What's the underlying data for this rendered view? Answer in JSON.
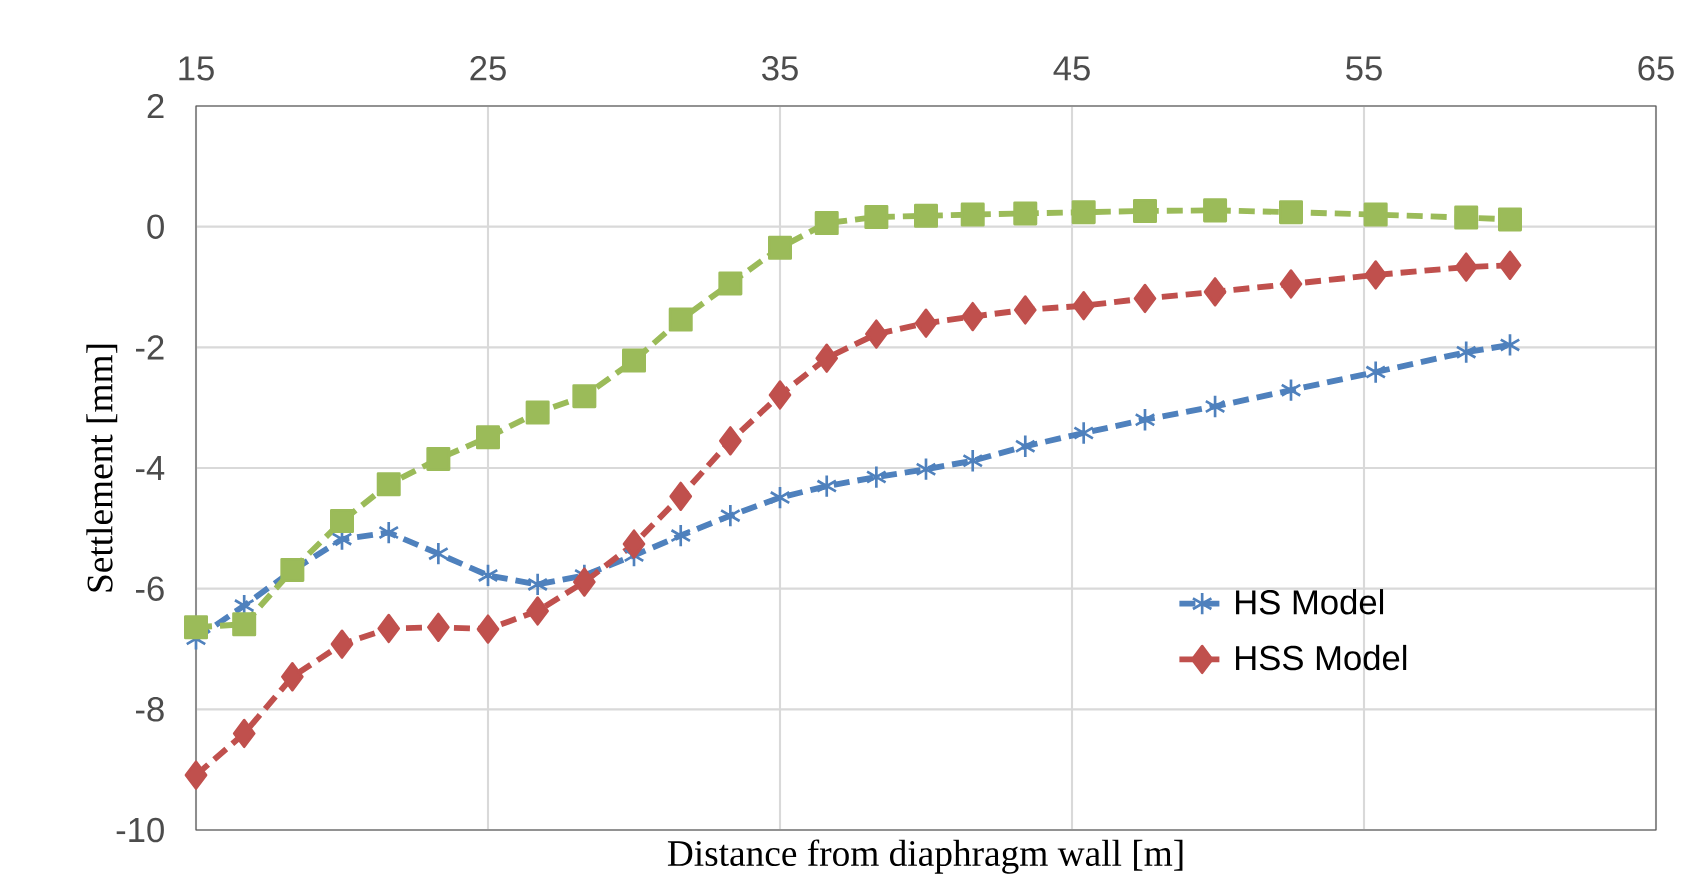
{
  "chart_data": {
    "type": "line",
    "xlabel": "Distance from diaphragm wall [m]",
    "ylabel": "Settlement [mm]",
    "x": [
      15,
      16.65,
      18.3,
      20,
      21.6,
      23.3,
      25,
      26.7,
      28.3,
      30,
      31.6,
      33.3,
      35,
      36.6,
      38.3,
      40,
      41.6,
      43.4,
      45.4,
      47.5,
      49.9,
      52.5,
      55.4,
      58.5,
      60
    ],
    "series": [
      {
        "name": "HS Model",
        "color": "#4f81bd",
        "marker": "cross",
        "values": [
          -6.83,
          -6.28,
          -5.7,
          -5.18,
          -5.07,
          -5.42,
          -5.78,
          -5.93,
          -5.78,
          -5.45,
          -5.12,
          -4.79,
          -4.49,
          -4.3,
          -4.15,
          -4.02,
          -3.88,
          -3.64,
          -3.42,
          -3.2,
          -2.98,
          -2.71,
          -2.41,
          -2.08,
          -1.96
        ]
      },
      {
        "name": "HSS Model",
        "color": "#c0504d",
        "marker": "diamond",
        "values": [
          -9.09,
          -8.4,
          -7.46,
          -6.92,
          -6.66,
          -6.64,
          -6.67,
          -6.37,
          -5.89,
          -5.26,
          -4.47,
          -3.55,
          -2.79,
          -2.18,
          -1.78,
          -1.6,
          -1.49,
          -1.38,
          -1.31,
          -1.19,
          -1.08,
          -0.95,
          -0.8,
          -0.67,
          -0.64
        ]
      },
      {
        "color": "#9bbb59",
        "marker": "square",
        "values": [
          -6.64,
          -6.59,
          -5.69,
          -4.88,
          -4.27,
          -3.85,
          -3.49,
          -3.08,
          -2.81,
          -2.22,
          -1.54,
          -0.94,
          -0.35,
          0.06,
          0.16,
          0.18,
          0.2,
          0.22,
          0.24,
          0.26,
          0.27,
          0.24,
          0.2,
          0.15,
          0.12
        ]
      }
    ],
    "xlim": [
      15,
      65
    ],
    "xticks": [
      15,
      25,
      35,
      45,
      55,
      65
    ],
    "ylim": [
      -10,
      2
    ],
    "yticks": [
      -10,
      -8,
      -6,
      -4,
      -2,
      0,
      2
    ],
    "grid": true,
    "legend": "bottom right",
    "line_style": "dashed"
  }
}
